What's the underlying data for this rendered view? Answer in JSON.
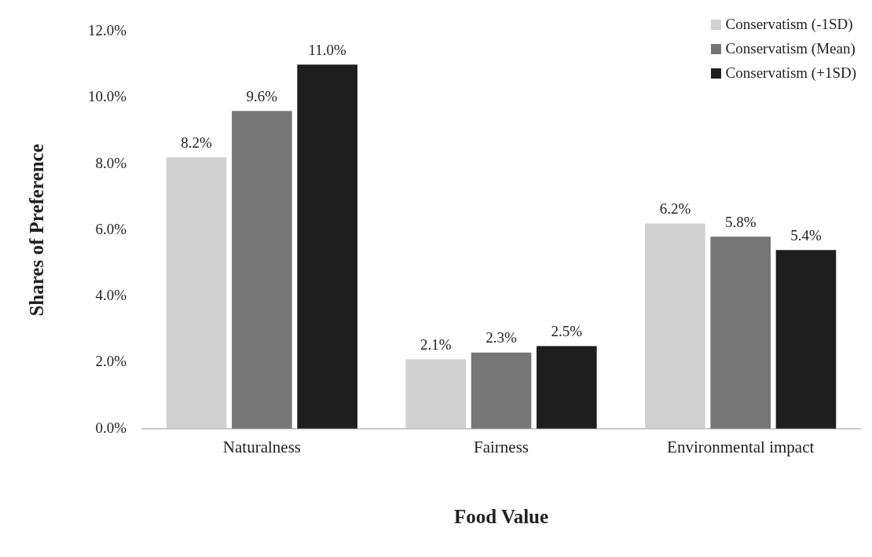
{
  "chart_data": {
    "type": "bar",
    "xlabel": "Food Value",
    "ylabel": "Shares of Preference",
    "categories": [
      "Naturalness",
      "Fairness",
      "Environmental impact"
    ],
    "series": [
      {
        "name": "Conservatism (-1SD)",
        "color": "#d0d0d0",
        "values": [
          8.2,
          2.1,
          6.2
        ],
        "value_labels": [
          "8.2%",
          "2.1%",
          "6.2%"
        ]
      },
      {
        "name": "Conservatism (Mean)",
        "color": "#767676",
        "values": [
          9.6,
          2.3,
          5.8
        ],
        "value_labels": [
          "9.6%",
          "2.3%",
          "5.8%"
        ]
      },
      {
        "name": "Conservatism (+1SD)",
        "color": "#1e1e1e",
        "values": [
          11.0,
          2.5,
          5.4
        ],
        "value_labels": [
          "11.0%",
          "2.5%",
          "5.4%"
        ]
      }
    ],
    "ylim": [
      0,
      12
    ],
    "yticks": [
      {
        "value": 0,
        "label": "0.0%"
      },
      {
        "value": 2,
        "label": "2.0%"
      },
      {
        "value": 4,
        "label": "4.0%"
      },
      {
        "value": 6,
        "label": "6.0%"
      },
      {
        "value": 8,
        "label": "8.0%"
      },
      {
        "value": 10,
        "label": "10.0%"
      },
      {
        "value": 12,
        "label": "12.0%"
      }
    ],
    "grid": false,
    "legend": "top right"
  }
}
